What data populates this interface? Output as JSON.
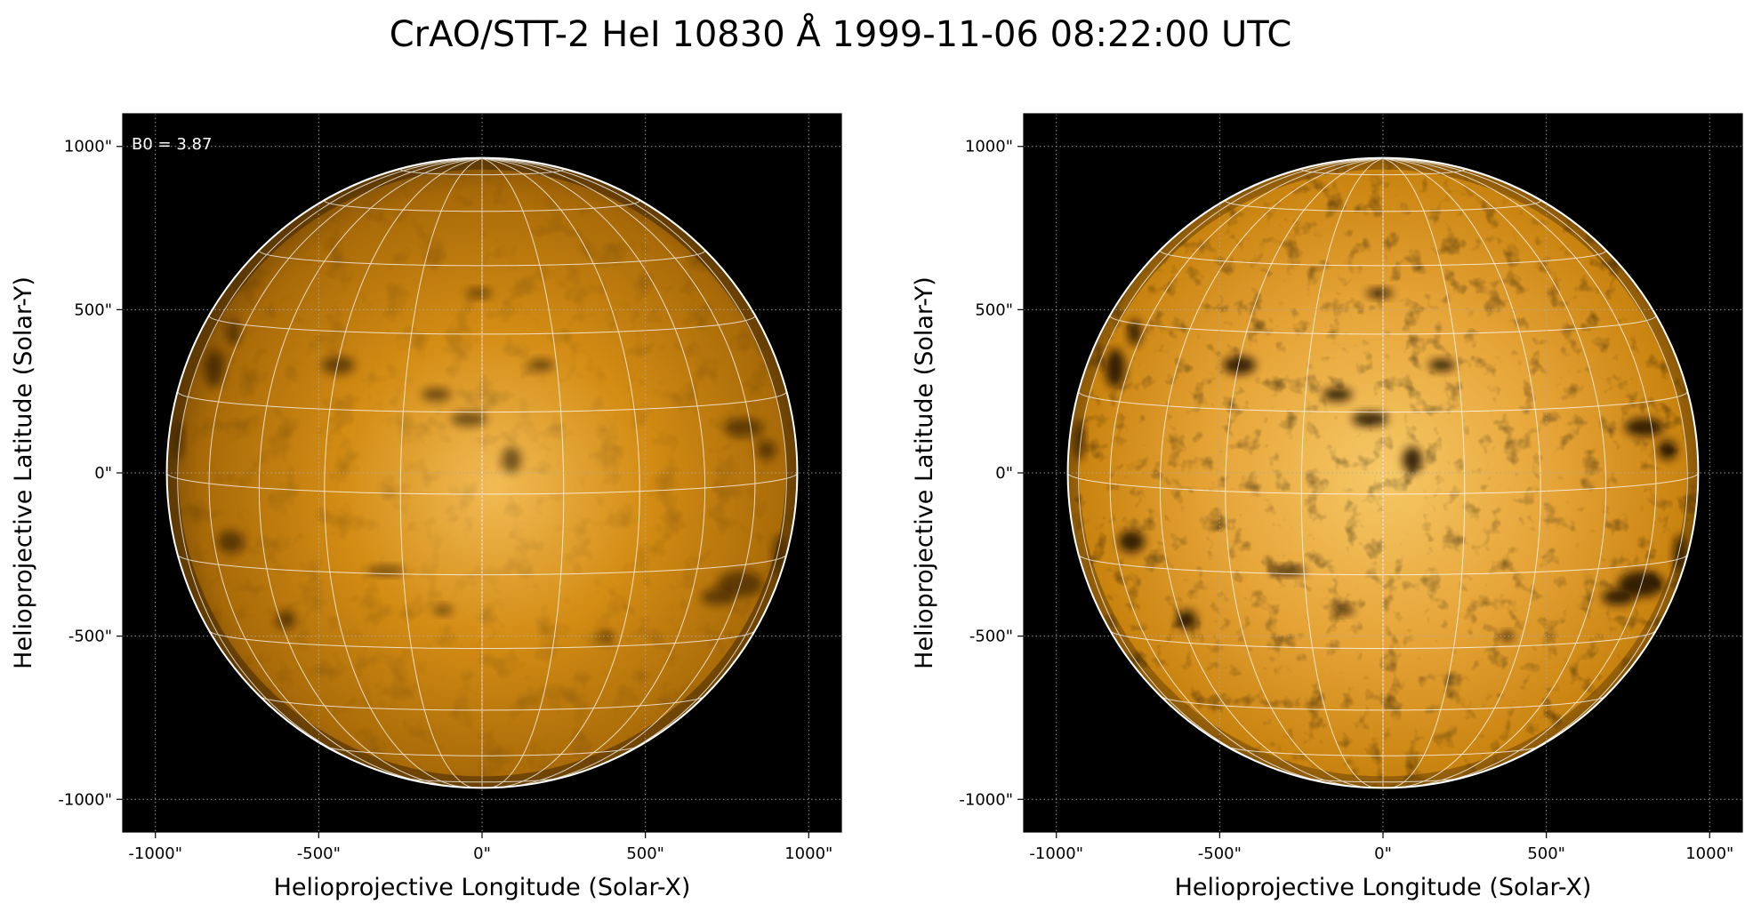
{
  "figure": {
    "title": "CrAO/STT-2 HeI 10830 Å 1999-11-06 08:22:00 UTC"
  },
  "colors": {
    "background": "#000000",
    "disk_dark": "#7a4a05",
    "disk_mid": "#c8820e",
    "disk_light": "#f0b84e",
    "grid": "#ffffff",
    "axis_grid": "#aaaaaa"
  },
  "panels": [
    {
      "name": "left",
      "annotation": "B0 = 3.87",
      "xlabel": "Helioprojective Longitude (Solar-X)",
      "ylabel": "Helioprojective Latitude (Solar-Y)",
      "xticks": [
        "-1000\"",
        "-500\"",
        "0\"",
        "500\"",
        "1000\""
      ],
      "yticks": [
        "1000\"",
        "500\"",
        "0\"",
        "-500\"",
        "-1000\""
      ],
      "contrast": "low"
    },
    {
      "name": "right",
      "annotation": "",
      "xlabel": "Helioprojective Longitude (Solar-X)",
      "ylabel": "Helioprojective Latitude (Solar-Y)",
      "xticks": [
        "-1000\"",
        "-500\"",
        "0\"",
        "500\"",
        "1000\""
      ],
      "yticks": [
        "1000\"",
        "500\"",
        "0\"",
        "-500\"",
        "-1000\""
      ],
      "contrast": "high"
    }
  ]
}
